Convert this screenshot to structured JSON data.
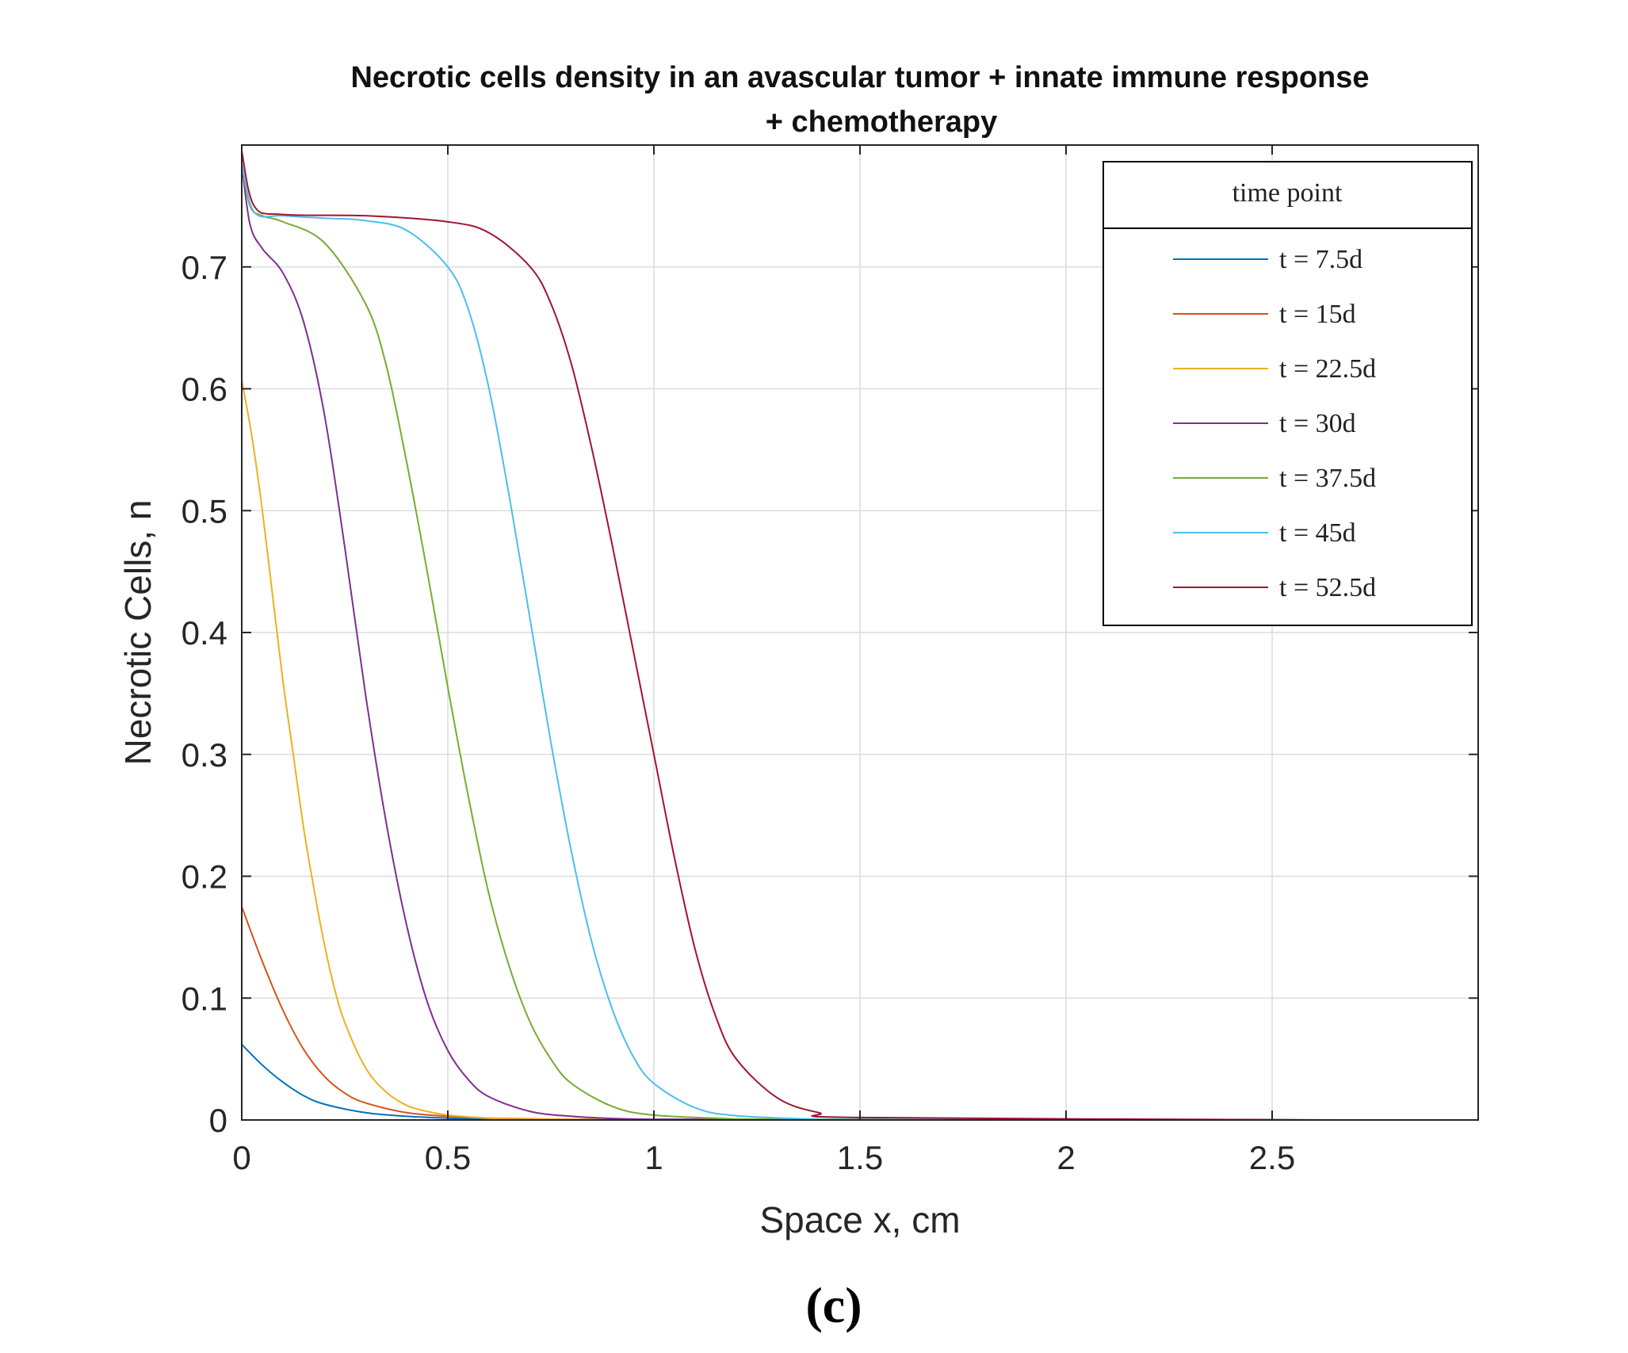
{
  "chart_data": {
    "type": "line",
    "title_line1": "Necrotic cells density in an avascular tumor + innate immune response",
    "title_line2": "+ chemotherapy",
    "xlabel": "Space x, cm",
    "ylabel": "Necrotic Cells, n",
    "xlim": [
      0,
      3
    ],
    "ylim": [
      0,
      0.8
    ],
    "xticks": [
      0,
      0.5,
      1,
      1.5,
      2,
      2.5
    ],
    "xtick_labels": [
      "0",
      "0.5",
      "1",
      "1.5",
      "2",
      "2.5"
    ],
    "yticks": [
      0,
      0.1,
      0.2,
      0.3,
      0.4,
      0.5,
      0.6,
      0.7
    ],
    "ytick_labels": [
      "0",
      "0.1",
      "0.2",
      "0.3",
      "0.4",
      "0.5",
      "0.6",
      "0.7"
    ],
    "grid": true,
    "legend_title": "time point",
    "legend_position": "top-right",
    "caption": "(c)",
    "x_end": 2.65,
    "series": [
      {
        "name": "t = 7.5d",
        "color": "#0072BD",
        "x": [
          0,
          0.05,
          0.1,
          0.15,
          0.2,
          0.3,
          0.4,
          0.5,
          0.6,
          0.8
        ],
        "y": [
          0.062,
          0.045,
          0.031,
          0.02,
          0.013,
          0.006,
          0.003,
          0.0015,
          0.0008,
          0.0005
        ]
      },
      {
        "name": "t = 15d",
        "color": "#D95319",
        "x": [
          0,
          0.05,
          0.1,
          0.15,
          0.2,
          0.25,
          0.3,
          0.4,
          0.5,
          0.6,
          0.8
        ],
        "y": [
          0.175,
          0.13,
          0.09,
          0.058,
          0.036,
          0.022,
          0.014,
          0.006,
          0.003,
          0.0015,
          0.0005
        ]
      },
      {
        "name": "t = 22.5d",
        "color": "#EDB120",
        "x": [
          0,
          0.025,
          0.05,
          0.075,
          0.1,
          0.125,
          0.15,
          0.175,
          0.2,
          0.225,
          0.25,
          0.3,
          0.35,
          0.4,
          0.45,
          0.5,
          0.6,
          0.7,
          0.9
        ],
        "y": [
          0.607,
          0.56,
          0.5,
          0.43,
          0.36,
          0.3,
          0.24,
          0.19,
          0.145,
          0.108,
          0.08,
          0.043,
          0.023,
          0.012,
          0.007,
          0.004,
          0.0015,
          0.0007,
          0.0003
        ]
      },
      {
        "name": "t = 30d",
        "color": "#7E2F8E",
        "x": [
          0,
          0.02,
          0.05,
          0.1,
          0.15,
          0.2,
          0.25,
          0.3,
          0.35,
          0.4,
          0.45,
          0.5,
          0.55,
          0.6,
          0.7,
          0.8,
          0.9,
          1.0
        ],
        "y": [
          0.785,
          0.735,
          0.715,
          0.695,
          0.655,
          0.58,
          0.47,
          0.35,
          0.245,
          0.16,
          0.097,
          0.057,
          0.033,
          0.019,
          0.007,
          0.003,
          0.0012,
          0.0005
        ]
      },
      {
        "name": "t = 37.5d",
        "color": "#77AC30",
        "x": [
          0,
          0.02,
          0.05,
          0.1,
          0.2,
          0.3,
          0.35,
          0.4,
          0.45,
          0.5,
          0.55,
          0.6,
          0.65,
          0.7,
          0.75,
          0.8,
          0.9,
          1.0,
          1.2
        ],
        "y": [
          0.785,
          0.75,
          0.742,
          0.737,
          0.72,
          0.67,
          0.62,
          0.54,
          0.45,
          0.355,
          0.265,
          0.185,
          0.125,
          0.08,
          0.05,
          0.03,
          0.011,
          0.004,
          0.0008
        ]
      },
      {
        "name": "t = 45d",
        "color": "#4DBEEE",
        "x": [
          0,
          0.03,
          0.1,
          0.2,
          0.3,
          0.4,
          0.5,
          0.55,
          0.6,
          0.65,
          0.7,
          0.75,
          0.8,
          0.85,
          0.9,
          0.95,
          1.0,
          1.1,
          1.2,
          1.4
        ],
        "y": [
          0.785,
          0.745,
          0.742,
          0.74,
          0.738,
          0.73,
          0.7,
          0.665,
          0.6,
          0.51,
          0.41,
          0.31,
          0.22,
          0.145,
          0.09,
          0.052,
          0.03,
          0.01,
          0.0035,
          0.0005
        ]
      },
      {
        "name": "t = 52.5d",
        "color": "#A2142F",
        "x": [
          0,
          0.03,
          0.1,
          0.3,
          0.5,
          0.6,
          0.7,
          0.75,
          0.8,
          0.85,
          0.9,
          0.95,
          1.0,
          1.05,
          1.1,
          1.15,
          1.2,
          1.3,
          1.4,
          1.5,
          2.65
        ],
        "y": [
          0.795,
          0.75,
          0.743,
          0.742,
          0.737,
          0.728,
          0.7,
          0.67,
          0.62,
          0.55,
          0.47,
          0.385,
          0.3,
          0.215,
          0.14,
          0.085,
          0.05,
          0.018,
          0.006,
          0.002,
          0.0
        ]
      }
    ]
  }
}
